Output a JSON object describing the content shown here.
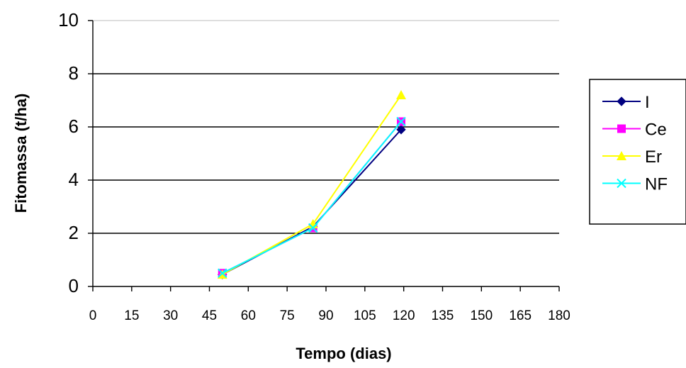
{
  "chart_data": {
    "type": "line",
    "title": "",
    "xlabel": "Tempo (dias)",
    "ylabel": "Fitomassa (t/ha)",
    "xlim": [
      0,
      180
    ],
    "ylim": [
      0,
      10
    ],
    "x_ticks": [
      0,
      15,
      30,
      45,
      60,
      75,
      90,
      105,
      120,
      135,
      150,
      165,
      180
    ],
    "y_ticks": [
      0,
      2,
      4,
      6,
      8,
      10
    ],
    "grid": "horizontal",
    "legend_position": "right",
    "series": [
      {
        "name": "I",
        "color": "#000080",
        "marker": "diamond",
        "x": [
          50,
          85,
          119
        ],
        "y": [
          0.45,
          2.25,
          5.9
        ]
      },
      {
        "name": "Ce",
        "color": "#ff00ff",
        "marker": "square",
        "x": [
          50,
          85,
          119
        ],
        "y": [
          0.5,
          2.2,
          6.2
        ]
      },
      {
        "name": "Er",
        "color": "#ffff00",
        "marker": "triangle",
        "x": [
          50,
          85,
          119
        ],
        "y": [
          0.45,
          2.35,
          7.2
        ]
      },
      {
        "name": "NF",
        "color": "#00ffff",
        "marker": "x",
        "x": [
          50,
          85,
          119
        ],
        "y": [
          0.5,
          2.2,
          6.2
        ]
      }
    ]
  }
}
